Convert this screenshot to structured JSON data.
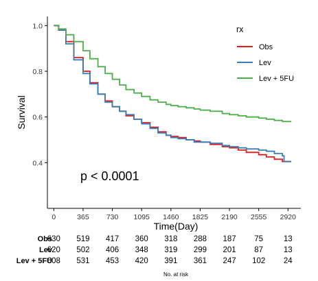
{
  "chart_data": {
    "type": "line",
    "subtype": "kaplan-meier",
    "xlabel": "Time(Day)",
    "ylabel": "Survival",
    "xlim": [
      -80,
      3080
    ],
    "ylim": [
      0.2,
      1.04
    ],
    "xticks": [
      0,
      365,
      730,
      1095,
      1460,
      1825,
      2190,
      2555,
      2920
    ],
    "yticks": [
      0.4,
      0.6,
      0.8,
      1.0
    ],
    "ytick_labels": [
      "0.4",
      "0.6",
      "0.8",
      "1.0"
    ],
    "grid": false,
    "legend_title": "rx",
    "legend_position": "top-right",
    "annotation": "p < 0.0001",
    "series": [
      {
        "name": "Obs",
        "color": "#e41a1c",
        "x": [
          0,
          60,
          150,
          250,
          365,
          450,
          550,
          640,
          730,
          820,
          900,
          1000,
          1095,
          1200,
          1300,
          1400,
          1460,
          1550,
          1650,
          1750,
          1825,
          1950,
          2100,
          2190,
          2300,
          2400,
          2555,
          2650,
          2750,
          2850,
          2960
        ],
        "y": [
          1.0,
          0.98,
          0.93,
          0.86,
          0.8,
          0.75,
          0.7,
          0.67,
          0.645,
          0.625,
          0.605,
          0.59,
          0.575,
          0.555,
          0.535,
          0.52,
          0.515,
          0.51,
          0.5,
          0.495,
          0.49,
          0.48,
          0.47,
          0.465,
          0.455,
          0.445,
          0.435,
          0.425,
          0.415,
          0.405,
          0.405
        ]
      },
      {
        "name": "Lev",
        "color": "#377eb8",
        "x": [
          0,
          60,
          150,
          250,
          365,
          450,
          550,
          640,
          730,
          820,
          900,
          1000,
          1095,
          1200,
          1300,
          1400,
          1460,
          1550,
          1650,
          1750,
          1825,
          1950,
          2100,
          2190,
          2300,
          2400,
          2555,
          2650,
          2750,
          2850,
          2870,
          2960
        ],
        "y": [
          1.0,
          0.98,
          0.92,
          0.85,
          0.79,
          0.745,
          0.7,
          0.665,
          0.645,
          0.625,
          0.61,
          0.59,
          0.57,
          0.55,
          0.53,
          0.52,
          0.51,
          0.505,
          0.5,
          0.49,
          0.49,
          0.485,
          0.475,
          0.47,
          0.465,
          0.46,
          0.455,
          0.45,
          0.44,
          0.43,
          0.405,
          0.405
        ]
      },
      {
        "name": "Lev + 5FU",
        "color": "#4daf4a",
        "x": [
          0,
          60,
          150,
          250,
          365,
          450,
          550,
          640,
          730,
          820,
          900,
          1000,
          1095,
          1200,
          1300,
          1400,
          1460,
          1550,
          1650,
          1750,
          1825,
          1950,
          2100,
          2190,
          2300,
          2400,
          2555,
          2650,
          2750,
          2850,
          2960
        ],
        "y": [
          1.0,
          0.985,
          0.96,
          0.93,
          0.89,
          0.855,
          0.82,
          0.79,
          0.765,
          0.74,
          0.72,
          0.705,
          0.69,
          0.675,
          0.665,
          0.655,
          0.65,
          0.645,
          0.64,
          0.635,
          0.63,
          0.625,
          0.615,
          0.61,
          0.605,
          0.6,
          0.595,
          0.59,
          0.585,
          0.58,
          0.58
        ]
      }
    ]
  },
  "risk_table": {
    "title": "No. at risk",
    "rows": [
      {
        "name": "Obs",
        "values": [
          "630",
          "519",
          "417",
          "360",
          "318",
          "288",
          "187",
          "75",
          "13"
        ]
      },
      {
        "name": "Lev",
        "values": [
          "620",
          "502",
          "406",
          "348",
          "319",
          "299",
          "201",
          "87",
          "13"
        ]
      },
      {
        "name": "Lev + 5FU",
        "values": [
          "608",
          "531",
          "453",
          "420",
          "391",
          "361",
          "247",
          "102",
          "24"
        ]
      }
    ]
  }
}
